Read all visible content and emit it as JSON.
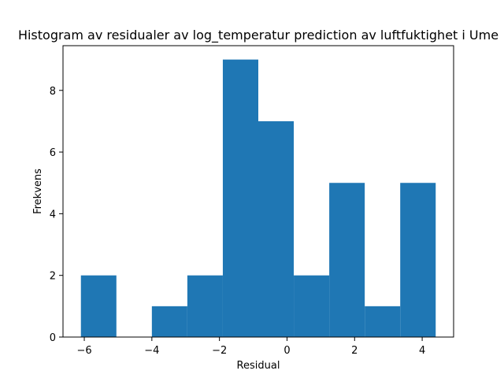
{
  "chart_data": {
    "type": "bar",
    "title": "Histogram av residualer av log_temperatur prediction av luftfuktighet i Ume",
    "xlabel": "Residual",
    "ylabel": "Frekvens",
    "bins": [
      {
        "x0": -6.1,
        "x1": -5.05,
        "count": 2
      },
      {
        "x0": -5.05,
        "x1": -4.0,
        "count": 0
      },
      {
        "x0": -4.0,
        "x1": -2.95,
        "count": 1
      },
      {
        "x0": -2.95,
        "x1": -1.9,
        "count": 2
      },
      {
        "x0": -1.9,
        "x1": -0.85,
        "count": 9
      },
      {
        "x0": -0.85,
        "x1": 0.2,
        "count": 7
      },
      {
        "x0": 0.2,
        "x1": 1.25,
        "count": 2
      },
      {
        "x0": 1.25,
        "x1": 2.3,
        "count": 5
      },
      {
        "x0": 2.3,
        "x1": 3.35,
        "count": 1
      },
      {
        "x0": 3.35,
        "x1": 4.4,
        "count": 5
      }
    ],
    "xlim": [
      -6.63,
      4.93
    ],
    "ylim": [
      0,
      9.45
    ],
    "xticks": [
      -6,
      -4,
      -2,
      0,
      2,
      4
    ],
    "xtick_labels": [
      "−6",
      "−4",
      "−2",
      "0",
      "2",
      "4"
    ],
    "yticks": [
      0,
      2,
      4,
      6,
      8
    ],
    "ytick_labels": [
      "0",
      "2",
      "4",
      "6",
      "8"
    ],
    "bar_color": "#1f77b4",
    "grid": false,
    "legend": "none"
  }
}
